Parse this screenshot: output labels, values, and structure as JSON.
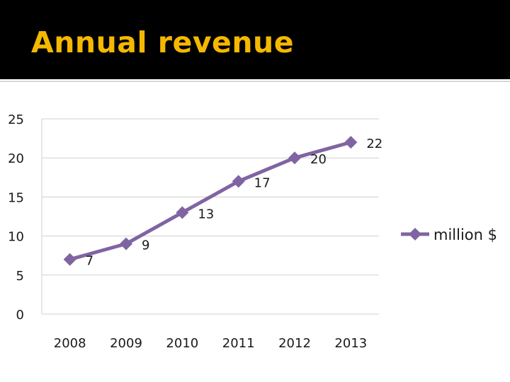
{
  "slide": {
    "title": "Annual revenue"
  },
  "colors": {
    "title": "#f5b800",
    "series": "#8064a2",
    "grid": "#d0d0d0"
  },
  "chart_data": {
    "type": "line",
    "title": "",
    "xlabel": "",
    "ylabel": "",
    "categories": [
      "2008",
      "2009",
      "2010",
      "2011",
      "2012",
      "2013"
    ],
    "series": [
      {
        "name": "million $",
        "values": [
          7,
          9,
          13,
          17,
          20,
          22
        ]
      }
    ],
    "ylim": [
      0,
      25
    ],
    "yticks": [
      0,
      5,
      10,
      15,
      20,
      25
    ],
    "grid": true,
    "data_labels": true,
    "marker": "diamond",
    "legend": "right"
  }
}
